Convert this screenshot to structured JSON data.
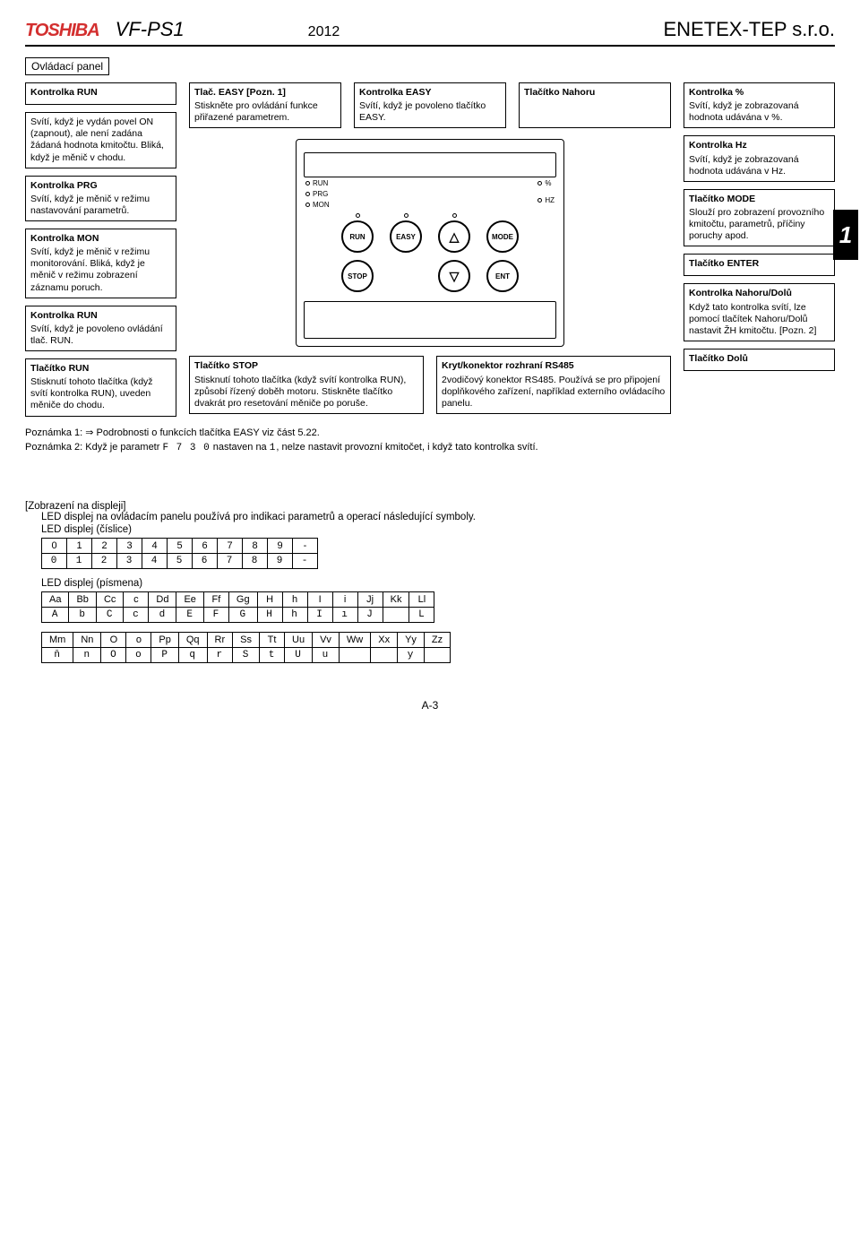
{
  "header": {
    "logo": "TOSHIBA",
    "model": "VF-PS1",
    "year": "2012",
    "company": "ENETEX-TEP s.r.o."
  },
  "section_title": "Ovládací panel",
  "chapter": "1",
  "left": [
    {
      "t": "Kontrolka RUN",
      "b": "Svítí, když je vydán povel ON (zapnout), ale není zadána žádaná hodnota kmitočtu. Bliká, když je měnič v chodu."
    },
    {
      "t": "Kontrolka PRG",
      "b": "Svítí, když je měnič v režimu nastavování parametrů."
    },
    {
      "t": "Kontrolka MON",
      "b": "Svítí, když je měnič v režimu monitorování. Bliká, když je měnič v režimu zobrazení záznamu poruch."
    },
    {
      "t": "Kontrolka RUN",
      "b": "Svítí, když je povoleno ovládání tlač. RUN."
    },
    {
      "t": "Tlačítko RUN",
      "b": "Stisknutí tohoto tlačítka (když svítí kontrolka RUN), uveden měniče do chodu."
    }
  ],
  "center_top": [
    {
      "t": "Tlač. EASY [Pozn. 1]",
      "b": "Stiskněte pro ovládání funkce přiřazené parametrem."
    },
    {
      "t": "Kontrolka EASY",
      "b": "Svítí, když je povoleno tlačítko EASY."
    },
    {
      "t": "Tlačítko Nahoru",
      "b": ""
    }
  ],
  "right": [
    {
      "t": "Kontrolka %",
      "b": "Svítí, když je zobrazovaná hodnota udávána v %."
    },
    {
      "t": "Kontrolka Hz",
      "b": "Svítí, když je zobrazovaná hodnota udávána v Hz."
    },
    {
      "t": "Tlačítko MODE",
      "b": "Slouží pro zobrazení provozního kmitočtu, parametrů, příčiny poruchy apod."
    },
    {
      "t": "Tlačítko ENTER",
      "b": ""
    },
    {
      "t": "Kontrolka Nahoru/Dolů",
      "b": "Když tato kontrolka svítí, lze pomocí tlačítek Nahoru/Dolů nastavit ŽH kmitočtu. [Pozn. 2]"
    },
    {
      "t": "Tlačítko Dolů",
      "b": ""
    }
  ],
  "bottom_center": [
    {
      "t": "Tlačítko STOP",
      "b": "Stisknutí tohoto tlačítka (když svítí kontrolka RUN), způsobí řízený doběh motoru. Stiskněte tlačítko dvakrát pro resetování měniče po poruše."
    },
    {
      "t": "Kryt/konektor rozhraní RS485",
      "b": "2vodičový konektor RS485. Používá se pro připojení doplňkového zařízení, například externího ovládacího panelu."
    }
  ],
  "panel_leds": {
    "l1": "RUN",
    "l2": "PRG",
    "l3": "MON",
    "r1": "%",
    "r2": "HZ"
  },
  "panel_btns": {
    "b1": "RUN",
    "b2": "EASY",
    "b3": "MODE",
    "b4": "STOP",
    "b5": "ENT"
  },
  "notes": {
    "n1": "Poznámka 1: ⇒ Podrobnosti o funkcích tlačítka EASY viz část 5.22.",
    "n2a": "Poznámka 2: Když je parametr ",
    "n2b": "F 7 3 0",
    "n2c": " nastaven na ",
    "n2d": "1",
    "n2e": ", nelze nastavit provozní kmitočet, i když tato kontrolka svítí."
  },
  "display": {
    "intro1": "[Zobrazení na displeji]",
    "intro2": "LED displej na ovládacím panelu používá pro indikaci parametrů a operací následující symboly.",
    "digits_title": "LED displej (číslice)",
    "digits_h": [
      "0",
      "1",
      "2",
      "3",
      "4",
      "5",
      "6",
      "7",
      "8",
      "9",
      "-"
    ],
    "digits_s": [
      "0",
      "1",
      "2",
      "3",
      "4",
      "5",
      "6",
      "7",
      "8",
      "9",
      "-"
    ],
    "letters_title": "LED displej (písmena)",
    "letters1_h": [
      "Aa",
      "Bb",
      "Cc",
      "c",
      "Dd",
      "Ee",
      "Ff",
      "Gg",
      "H",
      "h",
      "I",
      "i",
      "Jj",
      "Kk",
      "Ll"
    ],
    "letters1_s": [
      "A",
      "b",
      "C",
      "c",
      "d",
      "E",
      "F",
      "G",
      "H",
      "h",
      "I",
      "ı",
      "J",
      "",
      "L"
    ],
    "letters2_h": [
      "Mm",
      "Nn",
      "O",
      "o",
      "Pp",
      "Qq",
      "Rr",
      "Ss",
      "Tt",
      "Uu",
      "Vv",
      "Ww",
      "Xx",
      "Yy",
      "Zz"
    ],
    "letters2_s": [
      "n̄",
      "n",
      "O",
      "o",
      "P",
      "q",
      "r",
      "S",
      "t",
      "U",
      "u",
      "",
      "",
      "y",
      ""
    ]
  },
  "page_num": "A-3"
}
